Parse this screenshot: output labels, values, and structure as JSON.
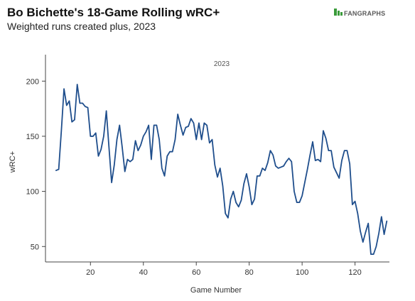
{
  "header": {
    "title": "Bo Bichette's 18-Game Rolling wRC+",
    "subtitle": "Weighted runs created plus, 2023"
  },
  "logo": {
    "text": "FANGRAPHS",
    "icon": "fangraphs-leaf-icon",
    "color": "#3a9b3a"
  },
  "chart_data": {
    "type": "line",
    "title": "Bo Bichette's 18-Game Rolling wRC+",
    "subtitle": "Weighted runs created plus, 2023",
    "xlabel": "Game Number",
    "ylabel": "wRC+",
    "xlim": [
      3,
      133
    ],
    "ylim": [
      36,
      224
    ],
    "xticks": [
      20,
      40,
      60,
      80,
      100,
      120
    ],
    "yticks": [
      50,
      100,
      150,
      200
    ],
    "grid": false,
    "legend": "none",
    "annotation": "2023",
    "series": [
      {
        "color": "#1f4e8c",
        "x": [
          7,
          8,
          9,
          10,
          11,
          12,
          13,
          14,
          15,
          16,
          17,
          18,
          19,
          20,
          21,
          22,
          23,
          24,
          25,
          26,
          27,
          28,
          29,
          30,
          31,
          32,
          33,
          34,
          35,
          36,
          37,
          38,
          39,
          40,
          41,
          42,
          43,
          44,
          45,
          46,
          47,
          48,
          49,
          50,
          51,
          52,
          53,
          54,
          55,
          56,
          57,
          58,
          59,
          60,
          61,
          62,
          63,
          64,
          65,
          66,
          67,
          68,
          69,
          70,
          71,
          72,
          73,
          74,
          75,
          76,
          77,
          78,
          79,
          80,
          81,
          82,
          83,
          84,
          85,
          86,
          87,
          88,
          89,
          90,
          91,
          92,
          93,
          94,
          95,
          96,
          97,
          98,
          99,
          100,
          101,
          102,
          103,
          104,
          105,
          106,
          107,
          108,
          109,
          110,
          111,
          112,
          113,
          114,
          115,
          116,
          117,
          118,
          119,
          120,
          121,
          122,
          123,
          124,
          125,
          126,
          127,
          128,
          129,
          130,
          131,
          132
        ],
        "y": [
          119,
          120,
          155,
          193,
          178,
          182,
          163,
          165,
          197,
          180,
          180,
          177,
          176,
          150,
          150,
          153,
          132,
          138,
          150,
          173,
          140,
          108,
          124,
          147,
          160,
          140,
          118,
          129,
          127,
          129,
          146,
          137,
          142,
          150,
          154,
          160,
          129,
          160,
          160,
          147,
          121,
          114,
          132,
          136,
          136,
          147,
          170,
          160,
          151,
          158,
          159,
          166,
          162,
          147,
          162,
          147,
          162,
          160,
          144,
          147,
          124,
          113,
          121,
          105,
          80,
          76,
          93,
          100,
          90,
          86,
          92,
          107,
          116,
          104,
          88,
          93,
          114,
          114,
          121,
          119,
          126,
          137,
          133,
          123,
          121,
          122,
          123,
          127,
          130,
          127,
          100,
          90,
          90,
          96,
          108,
          120,
          133,
          145,
          128,
          129,
          127,
          155,
          148,
          137,
          137,
          122,
          117,
          112,
          128,
          137,
          137,
          125,
          88,
          91,
          80,
          64,
          54,
          63,
          71,
          43,
          43,
          50,
          62,
          77,
          61,
          73
        ]
      }
    ]
  }
}
